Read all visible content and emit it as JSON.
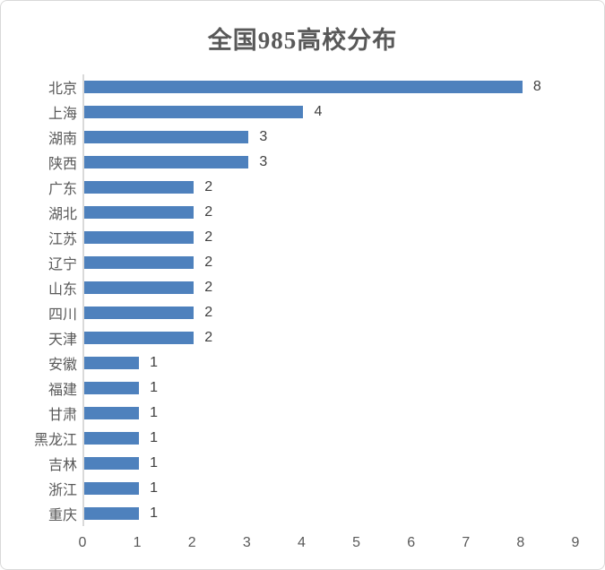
{
  "frame": {
    "background": "#ffffff",
    "border_color": "#d9d9d9"
  },
  "chart_data": {
    "type": "bar",
    "orientation": "horizontal",
    "title": "全国985高校分布",
    "categories": [
      "北京",
      "上海",
      "湖南",
      "陕西",
      "广东",
      "湖北",
      "江苏",
      "辽宁",
      "山东",
      "四川",
      "天津",
      "安徽",
      "福建",
      "甘肃",
      "黑龙江",
      "吉林",
      "浙江",
      "重庆"
    ],
    "values": [
      8,
      4,
      3,
      3,
      2,
      2,
      2,
      2,
      2,
      2,
      2,
      1,
      1,
      1,
      1,
      1,
      1,
      1
    ],
    "data_labels": [
      "8",
      "4",
      "3",
      "3",
      "2",
      "2",
      "2",
      "2",
      "2",
      "2",
      "2",
      "1",
      "1",
      "1",
      "1",
      "1",
      "1",
      "1"
    ],
    "xlabel": "",
    "ylabel": "",
    "xlim": [
      0,
      9
    ],
    "x_ticks": [
      "0",
      "1",
      "2",
      "3",
      "4",
      "5",
      "6",
      "7",
      "8",
      "9"
    ],
    "grid": false,
    "legend": false,
    "bar_color": "#4e81bd",
    "axis_line_color": "#d9d9d9",
    "label_color": "#595959",
    "value_label_color": "#404040"
  }
}
